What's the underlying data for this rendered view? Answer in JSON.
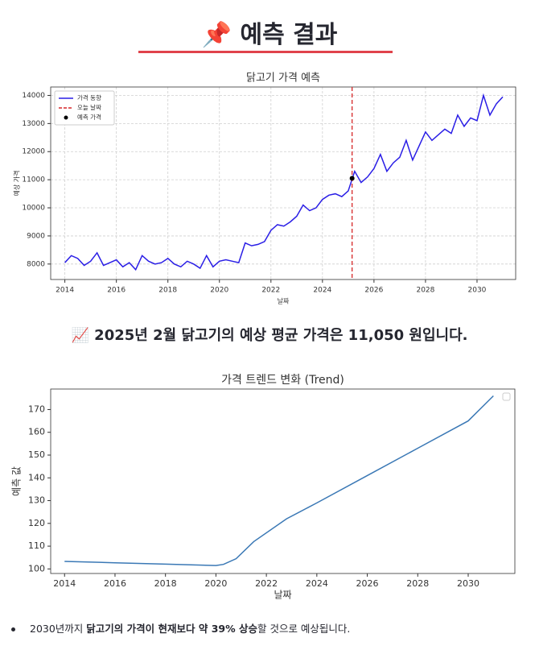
{
  "header": {
    "title": "📌 예측 결과"
  },
  "summary": "📈 2025년 2월 닭고기의 예상 평균 가격은 11,050 원입니다.",
  "bullet": {
    "parts": [
      {
        "text": "2030년까지 ",
        "bold": false
      },
      {
        "text": "닭고기의 가격이 현재보다 약 39% 상승",
        "bold": true
      },
      {
        "text": "할 것으로 예상됩니다.",
        "bold": false
      }
    ]
  },
  "chart_data": [
    {
      "type": "line",
      "title": "닭고기 가격 예측",
      "x_label": "날짜",
      "y_label": "예상 가격",
      "x": [
        2014.0,
        2014.25,
        2014.5,
        2014.75,
        2015.0,
        2015.25,
        2015.5,
        2015.75,
        2016.0,
        2016.25,
        2016.5,
        2016.75,
        2017.0,
        2017.25,
        2017.5,
        2017.75,
        2018.0,
        2018.25,
        2018.5,
        2018.75,
        2019.0,
        2019.25,
        2019.5,
        2019.75,
        2020.0,
        2020.25,
        2020.5,
        2020.75,
        2021.0,
        2021.25,
        2021.5,
        2021.75,
        2022.0,
        2022.25,
        2022.5,
        2022.75,
        2023.0,
        2023.25,
        2023.5,
        2023.75,
        2024.0,
        2024.25,
        2024.5,
        2024.75,
        2025.0,
        2025.25,
        2025.5,
        2025.75,
        2026.0,
        2026.25,
        2026.5,
        2026.75,
        2027.0,
        2027.25,
        2027.5,
        2027.75,
        2028.0,
        2028.25,
        2028.5,
        2028.75,
        2029.0,
        2029.25,
        2029.5,
        2029.75,
        2030.0,
        2030.25,
        2030.5,
        2030.75,
        2031.0
      ],
      "series": [
        {
          "name": "가격 동향",
          "color": "#2a1ee6",
          "values": [
            8050,
            8300,
            8200,
            7950,
            8100,
            8400,
            7950,
            8050,
            8150,
            7900,
            8050,
            7800,
            8300,
            8100,
            8000,
            8050,
            8200,
            8000,
            7900,
            8100,
            8000,
            7850,
            8300,
            7900,
            8100,
            8150,
            8100,
            8050,
            8750,
            8650,
            8700,
            8800,
            9200,
            9400,
            9350,
            9500,
            9700,
            10100,
            9900,
            10000,
            10300,
            10450,
            10500,
            10400,
            10600,
            11300,
            10900,
            11100,
            11400,
            11900,
            11300,
            11600,
            11800,
            12400,
            11700,
            12200,
            12700,
            12400,
            12600,
            12800,
            12650,
            13300,
            12900,
            13200,
            13100,
            14000,
            13300,
            13700,
            13950
          ]
        }
      ],
      "vline": {
        "name": "오늘 날짜",
        "x": 2025.15,
        "color": "#d62728"
      },
      "points": [
        {
          "name": "예측 가격",
          "x": 2025.15,
          "y": 11050,
          "color": "#000000"
        }
      ],
      "xlim": [
        2013.45,
        2031.5
      ],
      "xticks": [
        2014,
        2016,
        2018,
        2020,
        2022,
        2024,
        2026,
        2028,
        2030
      ],
      "ylim": [
        7450,
        14300
      ],
      "yticks": [
        8000,
        9000,
        10000,
        11000,
        12000,
        13000,
        14000
      ],
      "grid": true,
      "legend": "upper-left"
    },
    {
      "type": "line",
      "title": "가격 트렌드 변화 (Trend)",
      "x_label": "날짜",
      "y_label": "예측 값",
      "x": [
        2014,
        2016,
        2018,
        2020,
        2020.3,
        2020.8,
        2021.5,
        2022.8,
        2024,
        2026,
        2028,
        2030,
        2031
      ],
      "series": [
        {
          "color": "#3a78b5",
          "values": [
            103.3,
            102.7,
            102.1,
            101.5,
            102,
            104.5,
            112,
            122,
            129,
            141,
            153,
            165,
            176
          ]
        }
      ],
      "xlim": [
        2013.45,
        2031.85
      ],
      "xticks": [
        2014,
        2016,
        2018,
        2020,
        2022,
        2024,
        2026,
        2028,
        2030
      ],
      "ylim": [
        98,
        179
      ],
      "yticks": [
        100,
        110,
        120,
        130,
        140,
        150,
        160,
        170
      ],
      "grid": false,
      "legend": "upper-right"
    }
  ]
}
